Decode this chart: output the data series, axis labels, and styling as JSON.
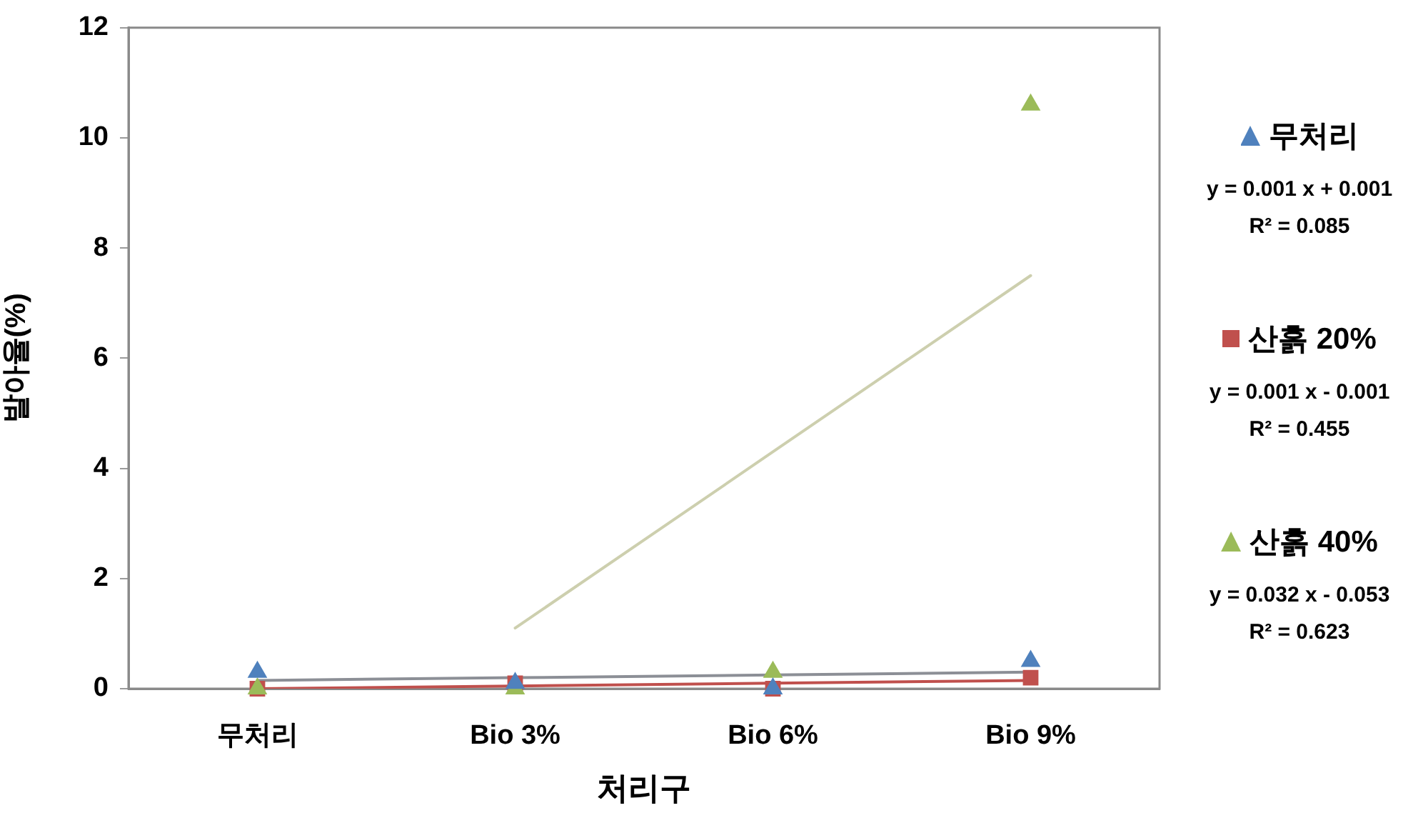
{
  "chart_data": {
    "type": "scatter",
    "xlabel": "처리구",
    "ylabel": "발아율(%)",
    "categories": [
      "무처리",
      "Bio 3%",
      "Bio 6%",
      "Bio 9%"
    ],
    "ylim": [
      0,
      12
    ],
    "yticks": [
      0,
      2,
      4,
      6,
      8,
      10,
      12
    ],
    "grid": false,
    "legend": "right",
    "series": [
      {
        "name": "무처리",
        "color": "#4f81bd",
        "marker": "triangle",
        "values": [
          0.3,
          0.1,
          0,
          0.5
        ]
      },
      {
        "name": "산흙 20%",
        "color": "#c0504d",
        "marker": "square",
        "values": [
          0,
          0.1,
          0,
          0.2
        ]
      },
      {
        "name": "산흙 40%",
        "color": "#9bbb59",
        "marker": "triangle",
        "values": [
          0,
          0,
          0.3,
          10.6
        ]
      },
      {
        "type": "line",
        "color": "#8c8f96",
        "marker": "none",
        "values": [
          0.15,
          0.2,
          0.25,
          0.3
        ]
      },
      {
        "type": "line",
        "color": "#c0504d",
        "marker": "none",
        "values": [
          0,
          0.05,
          0.1,
          0.15
        ]
      },
      {
        "type": "line",
        "color": "#cdcfae",
        "marker": "none",
        "values": [
          null,
          1.1,
          4.3,
          7.5
        ]
      }
    ],
    "annotations": [
      "y = 0.001 x + 0.001",
      "R² = 0.085",
      "y = 0.001 x - 0.001",
      "R² = 0.455",
      "y = 0.032 x - 0.053",
      "R² = 0.623"
    ]
  }
}
